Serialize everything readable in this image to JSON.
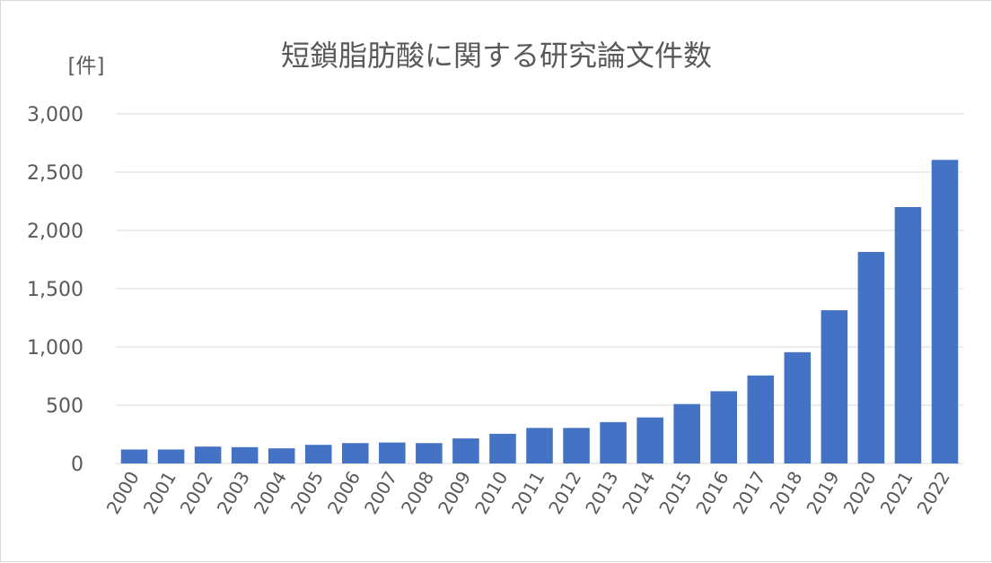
{
  "chart_data": {
    "type": "bar",
    "title": "短鎖脂肪酸に関する研究論文件数",
    "unit_label": "[件]",
    "xlabel": "",
    "ylabel": "",
    "categories": [
      "2000",
      "2001",
      "2002",
      "2003",
      "2004",
      "2005",
      "2006",
      "2007",
      "2008",
      "2009",
      "2010",
      "2011",
      "2012",
      "2013",
      "2014",
      "2015",
      "2016",
      "2017",
      "2018",
      "2019",
      "2020",
      "2021",
      "2022"
    ],
    "values": [
      120,
      120,
      145,
      140,
      130,
      160,
      175,
      180,
      175,
      215,
      255,
      305,
      305,
      355,
      395,
      510,
      620,
      755,
      955,
      1315,
      1815,
      2200,
      2605
    ],
    "ylim": [
      0,
      3000
    ],
    "yticks": [
      0,
      500,
      1000,
      1500,
      2000,
      2500,
      3000
    ],
    "ytick_labels": [
      "0",
      "500",
      "1,000",
      "1,500",
      "2,000",
      "2,500",
      "3,000"
    ],
    "bar_color": "#4472c4",
    "grid": true,
    "legend": "none"
  }
}
